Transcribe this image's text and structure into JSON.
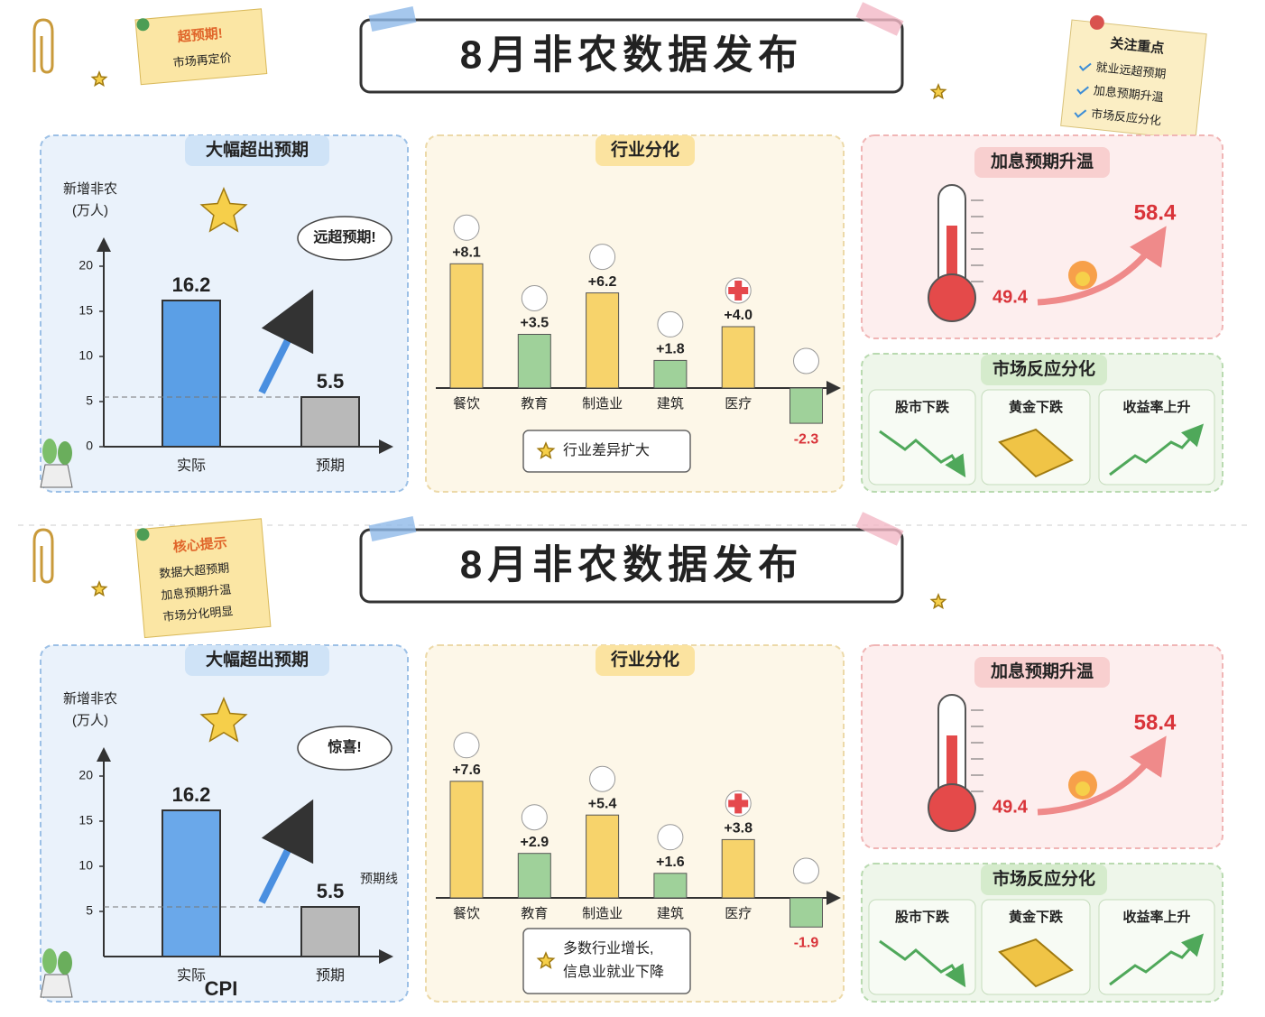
{
  "boards": [
    {
      "title": "8月非农数据发布",
      "note": {
        "title": "超预期!",
        "items": [
          "市场再定价"
        ]
      },
      "focus": {
        "title": "关注重点",
        "items": [
          "就业远超预期",
          "加息预期升温",
          "市场反应分化"
        ]
      },
      "payrolls": {
        "type": "bar",
        "title": "大幅超出预期",
        "y_label": [
          "新增非农",
          "(万人)"
        ],
        "categories": [
          "实际",
          "预期"
        ],
        "values": [
          16.2,
          5.5
        ],
        "colors": [
          "#5b9fe6",
          "#b9b9b9"
        ],
        "ylim": [
          0,
          22
        ],
        "yticks": [
          0,
          5,
          10,
          15,
          20
        ],
        "callout": "远超预期!"
      },
      "sectors": {
        "type": "bar",
        "title": "行业分化",
        "categories": [
          "餐饮",
          "教育",
          "制造业",
          "建筑",
          "医疗",
          null
        ],
        "values": [
          8.1,
          3.5,
          6.2,
          1.8,
          4.0,
          -2.3
        ],
        "value_labels": [
          "+8.1",
          "+3.5",
          "+6.2",
          "+1.8",
          "+4.0",
          "-2.3"
        ],
        "colors": [
          "#f7d36b",
          "#9fd19a",
          "#f7d36b",
          "#9fd19a",
          "#f7d36b",
          "#9fd19a"
        ],
        "note": [
          "行业差异扩大"
        ]
      },
      "rates": {
        "title": "加息预期升温",
        "from": 49.4,
        "to": 58.4
      },
      "market": {
        "title": "市场反应分化",
        "items": [
          "股市下跌",
          "黄金下跌",
          "收益率上升"
        ]
      }
    },
    {
      "title": "8月非农数据发布",
      "note": {
        "title": "核心提示",
        "items": [
          "数据大超预期",
          "加息预期升温",
          "市场分化明显"
        ]
      },
      "payrolls": {
        "type": "bar",
        "title": "大幅超出预期",
        "y_label": [
          "新增非农",
          "(万人)"
        ],
        "categories": [
          "实际",
          "预期"
        ],
        "values": [
          16.2,
          5.5
        ],
        "colors": [
          "#6aa8ea",
          "#b9b9b9"
        ],
        "ylim": [
          0,
          22
        ],
        "yticks": [
          5,
          10,
          15,
          20
        ],
        "callout": "惊喜!",
        "expect_label": "预期线",
        "extra": "CPI"
      },
      "sectors": {
        "type": "bar",
        "title": "行业分化",
        "categories": [
          "餐饮",
          "教育",
          "制造业",
          "建筑",
          "医疗",
          null
        ],
        "values": [
          7.6,
          2.9,
          5.4,
          1.6,
          3.8,
          -1.9
        ],
        "value_labels": [
          "+7.6",
          "+2.9",
          "+5.4",
          "+1.6",
          "+3.8",
          "-1.9"
        ],
        "colors": [
          "#f7d36b",
          "#9fd19a",
          "#f7d36b",
          "#9fd19a",
          "#f7d36b",
          "#9fd19a"
        ],
        "note": [
          "多数行业增长,",
          "信息业就业下降"
        ]
      },
      "rates": {
        "title": "加息预期升温",
        "from": 49.4,
        "to": 58.4
      },
      "market": {
        "title": "市场反应分化",
        "items": [
          "股市下跌",
          "黄金下跌",
          "收益率上升"
        ]
      }
    }
  ]
}
